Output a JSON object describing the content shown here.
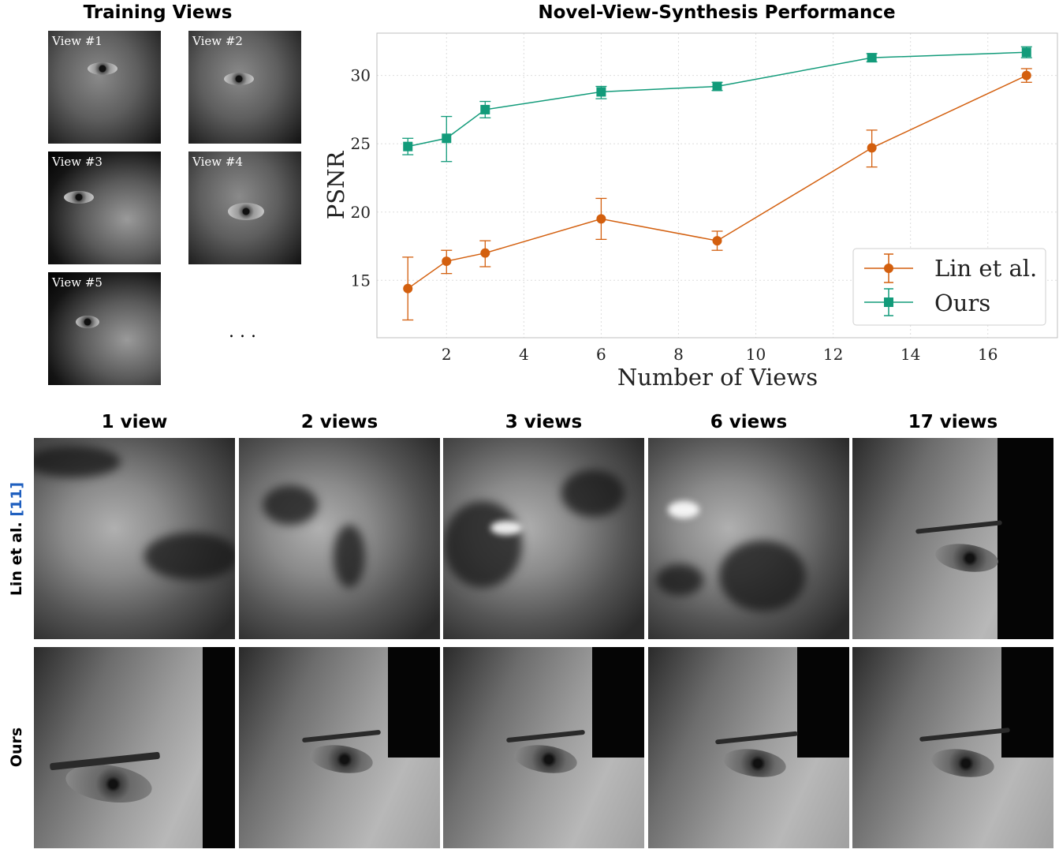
{
  "training": {
    "title": "Training Views",
    "views": [
      "View #1",
      "View #2",
      "View #3",
      "View #4",
      "View #5"
    ],
    "ellipsis": ". . ."
  },
  "chart_title": "Novel-View-Synthesis Performance",
  "chart_data": {
    "type": "line",
    "title": "Novel-View-Synthesis Performance",
    "xlabel": "Number of Views",
    "ylabel": "PSNR",
    "xlim": [
      0.2,
      17.8
    ],
    "ylim": [
      10.8,
      33.1
    ],
    "xticks": [
      2,
      4,
      6,
      8,
      10,
      12,
      14,
      16
    ],
    "yticks": [
      15,
      20,
      25,
      30
    ],
    "grid": true,
    "legend_position": "bottom-right",
    "x": [
      1,
      2,
      3,
      6,
      9,
      13,
      17
    ],
    "series": [
      {
        "name": "Lin et al.",
        "color": "#d35f0e",
        "marker": "circle",
        "values": [
          14.4,
          16.4,
          17.0,
          19.5,
          17.9,
          24.7,
          30.0
        ],
        "err_low": [
          12.1,
          15.5,
          16.0,
          18.0,
          17.2,
          23.3,
          29.5
        ],
        "err_high": [
          16.7,
          17.2,
          17.9,
          21.0,
          18.6,
          26.0,
          30.5
        ]
      },
      {
        "name": "Ours",
        "color": "#129b7a",
        "marker": "square",
        "values": [
          24.8,
          25.4,
          27.5,
          28.8,
          29.2,
          31.3,
          31.7
        ],
        "err_low": [
          24.2,
          23.7,
          26.9,
          28.3,
          28.9,
          31.0,
          31.3
        ],
        "err_high": [
          25.4,
          27.0,
          28.1,
          29.2,
          29.5,
          31.6,
          32.1
        ]
      }
    ]
  },
  "comparison": {
    "columns": [
      "1 view",
      "2 views",
      "3 views",
      "6 views",
      "17 views"
    ],
    "row_lin": "Lin et al. ",
    "row_lin_cite": "[11]",
    "row_ours": "Ours"
  }
}
